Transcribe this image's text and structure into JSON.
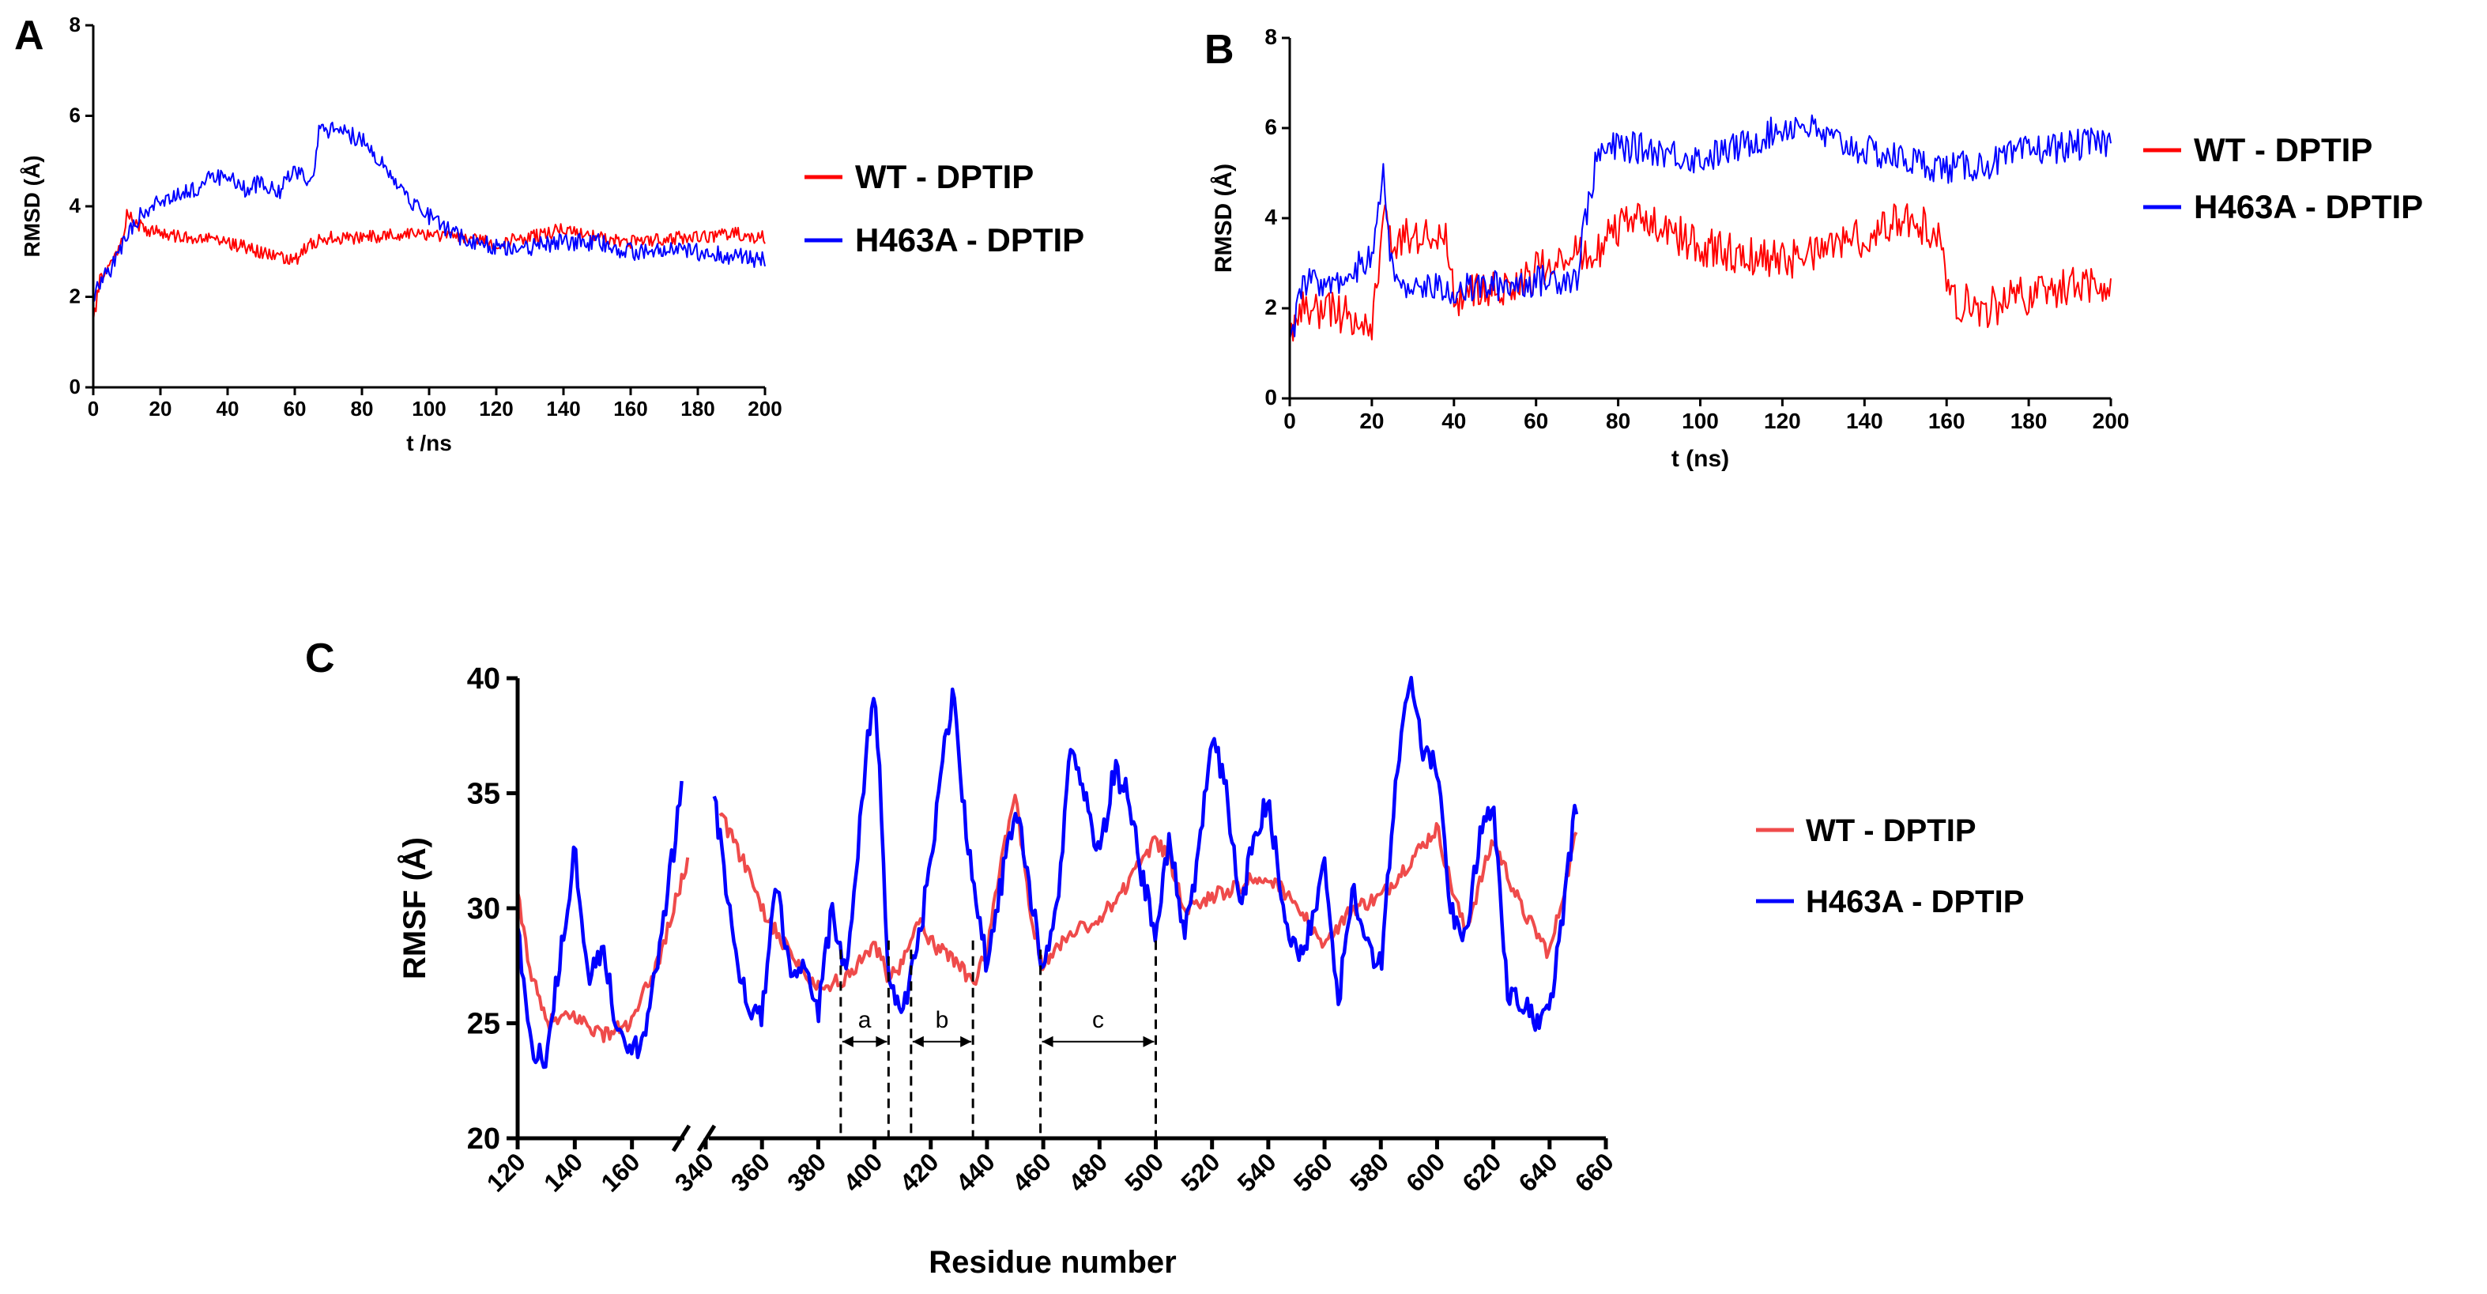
{
  "colors": {
    "wt": "#ff0000",
    "h463a": "#0000ff",
    "wt_rmsf": "#ef4b4b",
    "axis": "#000000"
  },
  "chart_data": [
    {
      "panel": "A",
      "type": "line",
      "title": "",
      "xlabel": "t /ns",
      "ylabel": "RMSD (Å)",
      "xlim": [
        0,
        200
      ],
      "ylim": [
        0,
        8
      ],
      "xticks": [
        0,
        20,
        40,
        60,
        80,
        100,
        120,
        140,
        160,
        180,
        200
      ],
      "yticks": [
        0,
        2,
        4,
        6,
        8
      ],
      "legend_position": "right",
      "series": [
        {
          "name": "WT - DPTIP",
          "color_key": "wt",
          "x": [
            0,
            2,
            5,
            8,
            10,
            15,
            20,
            30,
            40,
            50,
            55,
            60,
            65,
            70,
            80,
            90,
            100,
            110,
            120,
            130,
            140,
            150,
            160,
            170,
            180,
            190,
            200
          ],
          "y": [
            1.4,
            2.4,
            2.7,
            3.1,
            3.8,
            3.5,
            3.4,
            3.3,
            3.2,
            3.0,
            2.9,
            2.8,
            3.2,
            3.3,
            3.3,
            3.4,
            3.4,
            3.3,
            3.2,
            3.3,
            3.5,
            3.3,
            3.2,
            3.3,
            3.3,
            3.4,
            3.3
          ],
          "noise": 0.15
        },
        {
          "name": "H463A - DPTIP",
          "color_key": "h463a",
          "x": [
            0,
            2,
            5,
            8,
            12,
            15,
            20,
            25,
            30,
            35,
            40,
            45,
            50,
            55,
            60,
            65,
            67,
            70,
            75,
            80,
            85,
            90,
            95,
            100,
            105,
            110,
            115,
            120,
            130,
            140,
            150,
            160,
            170,
            180,
            190,
            200
          ],
          "y": [
            1.9,
            2.3,
            2.6,
            3.0,
            3.6,
            3.9,
            4.1,
            4.3,
            4.4,
            4.6,
            4.7,
            4.4,
            4.5,
            4.3,
            4.8,
            4.5,
            5.6,
            5.7,
            5.6,
            5.5,
            5.0,
            4.6,
            4.1,
            3.8,
            3.5,
            3.3,
            3.2,
            3.1,
            3.1,
            3.2,
            3.2,
            3.0,
            3.0,
            3.0,
            2.9,
            2.8
          ],
          "noise": 0.2
        }
      ]
    },
    {
      "panel": "B",
      "type": "line",
      "title": "",
      "xlabel": "t (ns)",
      "ylabel": "RMSD (Å)",
      "xlim": [
        0,
        200
      ],
      "ylim": [
        0,
        8
      ],
      "xticks": [
        0,
        20,
        40,
        60,
        80,
        100,
        120,
        140,
        160,
        180,
        200
      ],
      "yticks": [
        0,
        2,
        4,
        6,
        8
      ],
      "legend_position": "right",
      "series": [
        {
          "name": "WT - DPTIP",
          "color_key": "wt",
          "x": [
            0,
            3,
            8,
            15,
            20,
            22,
            23,
            25,
            30,
            35,
            38,
            40,
            45,
            50,
            55,
            60,
            65,
            70,
            75,
            80,
            85,
            90,
            95,
            100,
            110,
            120,
            130,
            140,
            150,
            155,
            159,
            160,
            165,
            170,
            180,
            190,
            200
          ],
          "y": [
            1.6,
            2.0,
            2.0,
            1.8,
            1.6,
            3.2,
            4.5,
            3.5,
            3.6,
            3.6,
            3.5,
            2.2,
            2.3,
            2.4,
            2.6,
            2.8,
            3.0,
            3.2,
            3.3,
            3.8,
            4.0,
            3.8,
            3.6,
            3.4,
            3.2,
            3.1,
            3.2,
            3.6,
            4.0,
            3.8,
            3.6,
            2.2,
            2.1,
            2.0,
            2.3,
            2.5,
            2.6
          ],
          "noise": 0.45
        },
        {
          "name": "H463A - DPTIP",
          "color_key": "h463a",
          "x": [
            0,
            3,
            10,
            15,
            20,
            23,
            25,
            30,
            40,
            50,
            60,
            70,
            72,
            75,
            80,
            90,
            100,
            110,
            120,
            125,
            130,
            140,
            150,
            160,
            170,
            180,
            190,
            200
          ],
          "y": [
            1.0,
            2.5,
            2.6,
            2.8,
            3.2,
            5.0,
            2.7,
            2.5,
            2.4,
            2.5,
            2.6,
            2.7,
            4.0,
            5.4,
            5.6,
            5.5,
            5.3,
            5.6,
            6.0,
            6.1,
            5.8,
            5.5,
            5.3,
            5.1,
            5.2,
            5.5,
            5.6,
            5.7
          ],
          "noise": 0.35
        }
      ]
    },
    {
      "panel": "C",
      "type": "line",
      "title": "",
      "xlabel": "Residue number",
      "ylabel": "RMSF (Å)",
      "ylim": [
        20,
        40
      ],
      "xticks_left": [
        120,
        140,
        160
      ],
      "xticks_right": [
        340,
        360,
        380,
        400,
        420,
        440,
        460,
        480,
        500,
        520,
        540,
        560,
        580,
        600,
        620,
        640,
        660
      ],
      "yticks": [
        20,
        25,
        30,
        35,
        40
      ],
      "axis_break": "between 160 and 340",
      "legend_position": "right",
      "annotations": [
        {
          "label": "a",
          "from": 388,
          "to": 405
        },
        {
          "label": "b",
          "from": 413,
          "to": 435
        },
        {
          "label": "c",
          "from": 459,
          "to": 500
        }
      ],
      "series": [
        {
          "name": "WT - DPTIP",
          "color_key": "wt_rmsf",
          "segments": [
            {
              "x": [
                120,
                125,
                130,
                140,
                150,
                160,
                170,
                180
              ],
              "y": [
                30.5,
                27,
                25,
                25.3,
                24.5,
                25,
                28,
                32.3
              ]
            },
            {
              "x": [
                345,
                350,
                360,
                370,
                380,
                390,
                400,
                405,
                410,
                415,
                420,
                430,
                435,
                440,
                445,
                450,
                455,
                460,
                470,
                480,
                490,
                500,
                505,
                510,
                520,
                530,
                540,
                550,
                560,
                570,
                580,
                590,
                600,
                605,
                610,
                620,
                630,
                640,
                650
              ],
              "y": [
                34,
                33,
                30,
                28,
                26.5,
                27,
                28.5,
                27,
                27.5,
                29.5,
                28.5,
                27.5,
                26.8,
                28,
                32,
                35,
                30,
                27.5,
                29,
                29.5,
                31,
                33,
                32,
                30,
                30.5,
                31,
                31.5,
                30,
                28.5,
                30,
                30.5,
                32,
                33.5,
                31,
                29,
                33,
                30,
                28,
                33.5
              ]
            }
          ],
          "noise": 0.35
        },
        {
          "name": "H463A - DPTIP",
          "color_key": "h463a",
          "segments": [
            {
              "x": [
                120,
                125,
                130,
                135,
                140,
                145,
                150,
                155,
                160,
                165,
                170,
                175,
                178
              ],
              "y": [
                29,
                24,
                23.5,
                28,
                32.5,
                27,
                28.5,
                24.5,
                23.5,
                25,
                28.5,
                33,
                36.5
              ]
            },
            {
              "x": [
                343,
                348,
                355,
                360,
                365,
                370,
                375,
                380,
                385,
                390,
                395,
                400,
                403,
                405,
                410,
                415,
                420,
                425,
                428,
                432,
                440,
                445,
                450,
                455,
                460,
                465,
                470,
                475,
                480,
                485,
                490,
                495,
                500,
                505,
                510,
                515,
                520,
                525,
                530,
                535,
                540,
                545,
                550,
                555,
                560,
                565,
                570,
                575,
                580,
                585,
                590,
                595,
                600,
                605,
                610,
                615,
                620,
                625,
                630,
                635,
                640,
                645,
                650
              ],
              "y": [
                35,
                30,
                25.5,
                25.5,
                31,
                27,
                28,
                25.5,
                30,
                27,
                34,
                40,
                33,
                26.5,
                25.5,
                28,
                32,
                37,
                39.5,
                34,
                27.5,
                31,
                34.5,
                31,
                27,
                30,
                37.5,
                35,
                32,
                36,
                35,
                31.5,
                29,
                33,
                29,
                32,
                37.5,
                35,
                30,
                33,
                35,
                30,
                28,
                29,
                32,
                26,
                31,
                28.5,
                27.5,
                35,
                40,
                37,
                36,
                30,
                28.5,
                33,
                34.5,
                26.5,
                26,
                25,
                25.5,
                30,
                35
              ]
            }
          ],
          "noise": 0.6
        }
      ]
    }
  ]
}
